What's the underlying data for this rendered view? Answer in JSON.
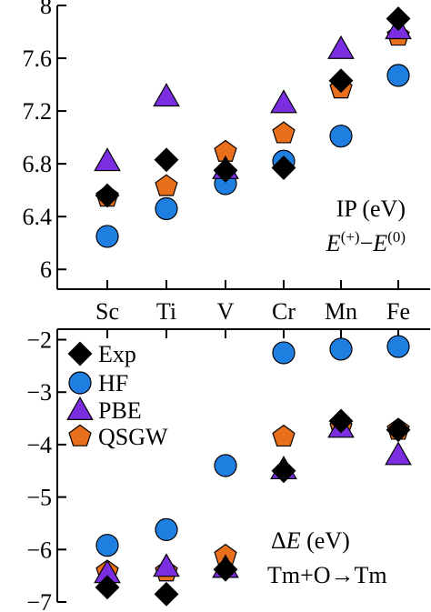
{
  "chart_data": [
    {
      "type": "scatter",
      "title": "",
      "xlabel": "",
      "ylabel": "",
      "categories": [
        "Sc",
        "Ti",
        "V",
        "Cr",
        "Mn",
        "Fe"
      ],
      "ylim": [
        5.85,
        8.0
      ],
      "yticks": [
        6,
        6.4,
        6.8,
        7.2,
        7.6,
        8
      ],
      "ytick_labels": [
        "6",
        "6.4",
        "6.8",
        "7.2",
        "7.6",
        "8"
      ],
      "annotation": {
        "line1": "IP (eV)",
        "line2": {
          "a": "E",
          "a_sup": "(+)",
          "minus": "−",
          "b": "E",
          "b_sup": "(0)"
        }
      },
      "series": [
        {
          "name": "Exp",
          "marker": "diamond",
          "color": "#000000",
          "values": [
            6.56,
            6.83,
            6.75,
            6.77,
            7.43,
            7.9
          ]
        },
        {
          "name": "HF",
          "marker": "circle",
          "color": "#1f7fe0",
          "values": [
            6.25,
            6.46,
            6.65,
            6.82,
            7.01,
            7.47
          ]
        },
        {
          "name": "PBE",
          "marker": "triangle",
          "color": "#7a2ee0",
          "values": [
            6.82,
            7.31,
            6.76,
            7.26,
            7.67,
            7.82
          ]
        },
        {
          "name": "QSGW",
          "marker": "pentagon",
          "color": "#e8701c",
          "values": [
            6.55,
            6.63,
            6.89,
            7.03,
            7.37,
            7.77
          ]
        }
      ]
    },
    {
      "type": "scatter",
      "title": "",
      "xlabel": "",
      "ylabel": "",
      "categories": [
        "Sc",
        "Ti",
        "V",
        "Cr",
        "Mn",
        "Fe"
      ],
      "ylim": [
        -7.0,
        -1.8
      ],
      "yticks": [
        -7,
        -6,
        -5,
        -4,
        -3,
        -2
      ],
      "ytick_labels": [
        "−7",
        "−6",
        "−5",
        "−4",
        "−3",
        "−2"
      ],
      "legend": {
        "placement": "top-left"
      },
      "annotation": {
        "line1_delta": "Δ",
        "line1_italic": "E",
        "line1_rest": " (eV)",
        "line2": "Tm+O→Tm"
      },
      "series": [
        {
          "name": "Exp",
          "marker": "diamond",
          "color": "#000000",
          "values": [
            -6.72,
            -6.85,
            -6.38,
            -4.5,
            -3.55,
            -3.72
          ]
        },
        {
          "name": "HF",
          "marker": "circle",
          "color": "#1f7fe0",
          "values": [
            -5.92,
            -5.62,
            -4.4,
            -2.25,
            -2.18,
            -2.13
          ]
        },
        {
          "name": "PBE",
          "marker": "triangle",
          "color": "#7a2ee0",
          "values": [
            -6.45,
            -6.33,
            -6.35,
            -4.47,
            -3.68,
            -4.2
          ]
        },
        {
          "name": "QSGW",
          "marker": "pentagon",
          "color": "#e8701c",
          "values": [
            -6.42,
            -6.42,
            -6.12,
            -3.85,
            -3.67,
            -3.72
          ]
        }
      ]
    }
  ]
}
